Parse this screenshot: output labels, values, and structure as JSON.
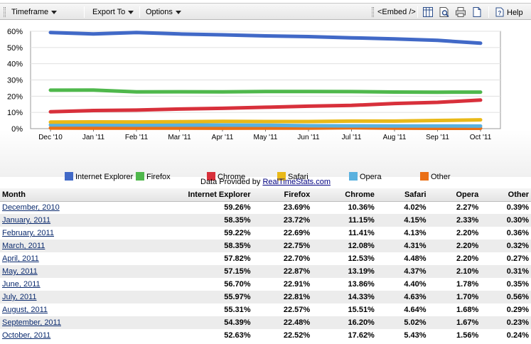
{
  "toolbar": {
    "timeframe_label": "Timeframe",
    "export_label": "Export To",
    "options_label": "Options",
    "embed_label": "<Embed />",
    "help_label": "Help"
  },
  "chart_data": {
    "type": "line",
    "categories": [
      "Dec '10",
      "Jan '11",
      "Feb '11",
      "Mar '11",
      "Apr '11",
      "May '11",
      "Jun '11",
      "Jul '11",
      "Aug '11",
      "Sep '11",
      "Oct '11"
    ],
    "ylim": [
      0,
      60
    ],
    "yticks": [
      "0%",
      "10%",
      "20%",
      "30%",
      "40%",
      "50%",
      "60%"
    ],
    "grid": true,
    "legend_position": "bottom",
    "series": [
      {
        "name": "Internet Explorer",
        "color": "#4169c7",
        "values": [
          59.26,
          58.35,
          59.22,
          58.35,
          57.82,
          57.15,
          56.7,
          55.97,
          55.31,
          54.39,
          52.63
        ]
      },
      {
        "name": "Firefox",
        "color": "#4fb84c",
        "values": [
          23.69,
          23.72,
          22.69,
          22.75,
          22.7,
          22.87,
          22.91,
          22.81,
          22.57,
          22.48,
          22.52
        ]
      },
      {
        "name": "Chrome",
        "color": "#d8303b",
        "values": [
          10.36,
          11.15,
          11.41,
          12.08,
          12.53,
          13.19,
          13.86,
          14.33,
          15.51,
          16.2,
          17.62
        ]
      },
      {
        "name": "Safari",
        "color": "#e9b918",
        "values": [
          4.02,
          4.15,
          4.13,
          4.31,
          4.48,
          4.37,
          4.4,
          4.63,
          4.64,
          5.02,
          5.43
        ]
      },
      {
        "name": "Opera",
        "color": "#5ab1df",
        "values": [
          2.27,
          2.33,
          2.2,
          2.2,
          2.2,
          2.1,
          1.78,
          1.7,
          1.68,
          1.67,
          1.56
        ]
      },
      {
        "name": "Other",
        "color": "#ea6f15",
        "values": [
          0.39,
          0.3,
          0.36,
          0.32,
          0.27,
          0.31,
          0.35,
          0.56,
          0.29,
          0.23,
          0.24
        ]
      }
    ]
  },
  "provided": {
    "prefix": "Data Provided by ",
    "link": "RealTimeStats.com"
  },
  "table": {
    "headers": [
      "Month",
      "Internet Explorer",
      "Firefox",
      "Chrome",
      "Safari",
      "Opera",
      "Other"
    ],
    "rows": [
      [
        "December, 2010",
        "59.26%",
        "23.69%",
        "10.36%",
        "4.02%",
        "2.27%",
        "0.39%"
      ],
      [
        "January, 2011",
        "58.35%",
        "23.72%",
        "11.15%",
        "4.15%",
        "2.33%",
        "0.30%"
      ],
      [
        "February, 2011",
        "59.22%",
        "22.69%",
        "11.41%",
        "4.13%",
        "2.20%",
        "0.36%"
      ],
      [
        "March, 2011",
        "58.35%",
        "22.75%",
        "12.08%",
        "4.31%",
        "2.20%",
        "0.32%"
      ],
      [
        "April, 2011",
        "57.82%",
        "22.70%",
        "12.53%",
        "4.48%",
        "2.20%",
        "0.27%"
      ],
      [
        "May, 2011",
        "57.15%",
        "22.87%",
        "13.19%",
        "4.37%",
        "2.10%",
        "0.31%"
      ],
      [
        "June, 2011",
        "56.70%",
        "22.91%",
        "13.86%",
        "4.40%",
        "1.78%",
        "0.35%"
      ],
      [
        "July, 2011",
        "55.97%",
        "22.81%",
        "14.33%",
        "4.63%",
        "1.70%",
        "0.56%"
      ],
      [
        "August, 2011",
        "55.31%",
        "22.57%",
        "15.51%",
        "4.64%",
        "1.68%",
        "0.29%"
      ],
      [
        "September, 2011",
        "54.39%",
        "22.48%",
        "16.20%",
        "5.02%",
        "1.67%",
        "0.23%"
      ],
      [
        "October, 2011",
        "52.63%",
        "22.52%",
        "17.62%",
        "5.43%",
        "1.56%",
        "0.24%"
      ]
    ]
  }
}
